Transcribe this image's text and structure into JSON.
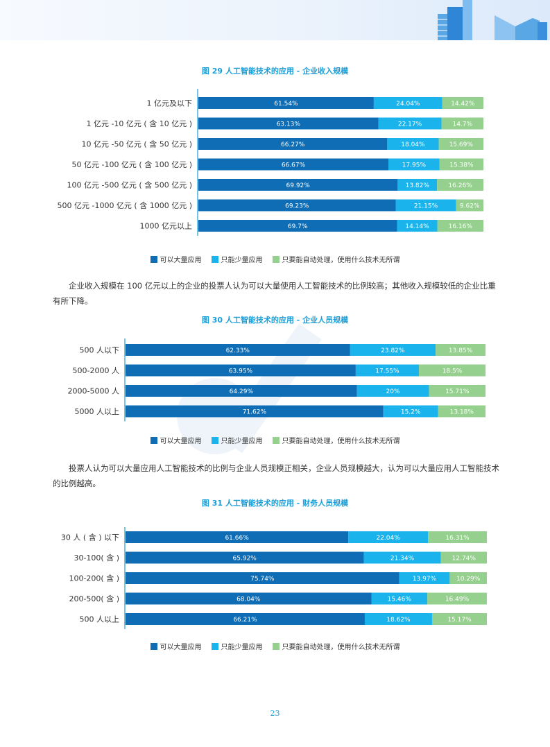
{
  "colors": {
    "s1": "#0e6db5",
    "s2": "#1ab3ec",
    "s3": "#96d08e",
    "accent": "#1a9fd9"
  },
  "legend": [
    "可以大量应用",
    "只能少量应用",
    "只要能自动处理，使用什么技术无所谓"
  ],
  "paragraph1": "企业收入规模在 100 亿元以上的企业的投票人认为可以大量使用人工智能技术的比例较高；其他收入规模较低的企业比重有所下降。",
  "paragraph2": "投票人认为可以大量应用人工智能技术的比例与企业人员规模正相关，企业人员规模越大，认为可以大量应用人工智能技术的比例越高。",
  "page_number": "23",
  "chart_data": [
    {
      "type": "bar",
      "stacked": true,
      "orientation": "horizontal",
      "title": "图 29 人工智能技术的应用 - 企业收入规模",
      "categories": [
        "1 亿元及以下",
        "1 亿元 -10 亿元 ( 含 10 亿元 )",
        "10 亿元 -50 亿元 ( 含 50 亿元 )",
        "50 亿元 -100 亿元 ( 含 100 亿元 )",
        "100 亿元 -500 亿元 ( 含 500 亿元 )",
        "500 亿元 -1000 亿元 ( 含 1000 亿元 )",
        "1000 亿元以上"
      ],
      "series": [
        {
          "name": "可以大量应用",
          "values": [
            61.54,
            63.13,
            66.27,
            66.67,
            69.92,
            69.23,
            69.7
          ],
          "labels": [
            "61.54%",
            "63.13%",
            "66.27%",
            "66.67%",
            "69.92%",
            "69.23%",
            "69.7%"
          ]
        },
        {
          "name": "只能少量应用",
          "values": [
            24.04,
            22.17,
            18.04,
            17.95,
            13.82,
            21.15,
            14.14
          ],
          "labels": [
            "24.04%",
            "22.17%",
            "18.04%",
            "17.95%",
            "13.82%",
            "21.15%",
            "14.14%"
          ]
        },
        {
          "name": "只要能自动处理，使用什么技术无所谓",
          "values": [
            14.42,
            14.7,
            15.69,
            15.38,
            16.26,
            9.62,
            16.16
          ],
          "labels": [
            "14.42%",
            "14.7%",
            "15.69%",
            "15.38%",
            "16.26%",
            "9.62%",
            "16.16%"
          ]
        }
      ],
      "xlim": [
        0,
        100
      ]
    },
    {
      "type": "bar",
      "stacked": true,
      "orientation": "horizontal",
      "title": "图 30 人工智能技术的应用 - 企业人员规模",
      "categories": [
        "500 人以下",
        "500-2000 人",
        "2000-5000 人",
        "5000 人以上"
      ],
      "series": [
        {
          "name": "可以大量应用",
          "values": [
            62.33,
            63.95,
            64.29,
            71.62
          ],
          "labels": [
            "62.33%",
            "63.95%",
            "64.29%",
            "71.62%"
          ]
        },
        {
          "name": "只能少量应用",
          "values": [
            23.82,
            17.55,
            20,
            15.2
          ],
          "labels": [
            "23.82%",
            "17.55%",
            "20%",
            "15.2%"
          ]
        },
        {
          "name": "只要能自动处理，使用什么技术无所谓",
          "values": [
            13.85,
            18.5,
            15.71,
            13.18
          ],
          "labels": [
            "13.85%",
            "18.5%",
            "15.71%",
            "13.18%"
          ]
        }
      ],
      "xlim": [
        0,
        100
      ]
    },
    {
      "type": "bar",
      "stacked": true,
      "orientation": "horizontal",
      "title": "图 31 人工智能技术的应用 - 财务人员规模",
      "categories": [
        "30 人 ( 含 ) 以下",
        "30-100( 含 )",
        "100-200( 含 )",
        "200-500( 含 )",
        "500 人以上"
      ],
      "series": [
        {
          "name": "可以大量应用",
          "values": [
            61.66,
            65.92,
            75.74,
            68.04,
            66.21
          ],
          "labels": [
            "61.66%",
            "65.92%",
            "75.74%",
            "68.04%",
            "66.21%"
          ]
        },
        {
          "name": "只能少量应用",
          "values": [
            22.04,
            21.34,
            13.97,
            15.46,
            18.62
          ],
          "labels": [
            "22.04%",
            "21.34%",
            "13.97%",
            "15.46%",
            "18.62%"
          ]
        },
        {
          "name": "只要能自动处理，使用什么技术无所谓",
          "values": [
            16.31,
            12.74,
            10.29,
            16.49,
            15.17
          ],
          "labels": [
            "16.31%",
            "12.74%",
            "10.29%",
            "16.49%",
            "15.17%"
          ]
        }
      ],
      "xlim": [
        0,
        100
      ]
    }
  ]
}
